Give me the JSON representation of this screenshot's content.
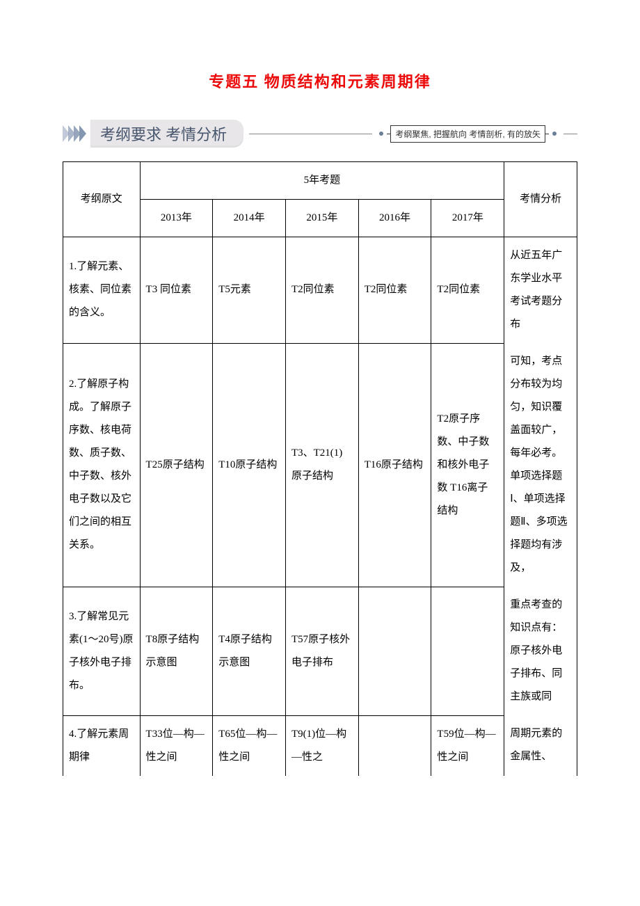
{
  "title": "专题五 物质结构和元素周期律",
  "banner": {
    "main": "考纲要求  考情分析",
    "box": "考纲聚焦, 把握航向  考情剖析, 有的放矢"
  },
  "headers": {
    "outline": "考纲原文",
    "fiveYear": "5年考题",
    "analysis": "考情分析",
    "years": [
      "2013年",
      "2014年",
      "2015年",
      "2016年",
      "2017年"
    ]
  },
  "rows": [
    {
      "outline": "1.了解元素、核素、同位素的含义。",
      "cells": [
        "T3 同位素",
        "T5元素",
        "T2同位素",
        "T2同位素",
        "T2同位素"
      ],
      "analysis": "从近五年广东学业水平考试考题分布"
    },
    {
      "outline": "2.了解原子构成。了解原子序数、核电荷数、质子数、中子数、核外电子数以及它们之间的相互关系。",
      "cells": [
        "T25原子结构",
        "T10原子结构",
        "T3、T21(1)原子结构",
        "T16原子结构",
        "T2原子序数、中子数和核外电子数 T16离子结构"
      ],
      "analysis": "可知，考点分布较为均匀，知识覆盖面较广，每年必考。单项选择题Ⅰ、单项选择题Ⅱ、多项选择题均有涉及，"
    },
    {
      "outline": "3.了解常见元素(1～20号)原子核外电子排布。",
      "cells": [
        "T8原子结构示意图",
        "T4原子结构示意图",
        "T57原子核外电子排布",
        "",
        ""
      ],
      "analysis": "重点考查的知识点有：原子核外电子排布、同主族或同"
    },
    {
      "outline": "4.了解元素周期律",
      "cells": [
        "T33位—构—性之间",
        "T65位—构—性之间",
        "T9(1)位—构—性之",
        "",
        "T59位—构—性之间"
      ],
      "analysis": "周期元素的金属性、"
    }
  ],
  "style": {
    "page_bg": "#ffffff",
    "title_color": "#ec0909",
    "title_fontsize": 22,
    "banner_bg": "#e8e6e9",
    "banner_text_color": "#47566d",
    "banner_fontsize": 22,
    "chevron_color": "#8596b0",
    "border_color": "#000000",
    "cell_fontsize": 15,
    "cell_line_height": 2.2
  }
}
